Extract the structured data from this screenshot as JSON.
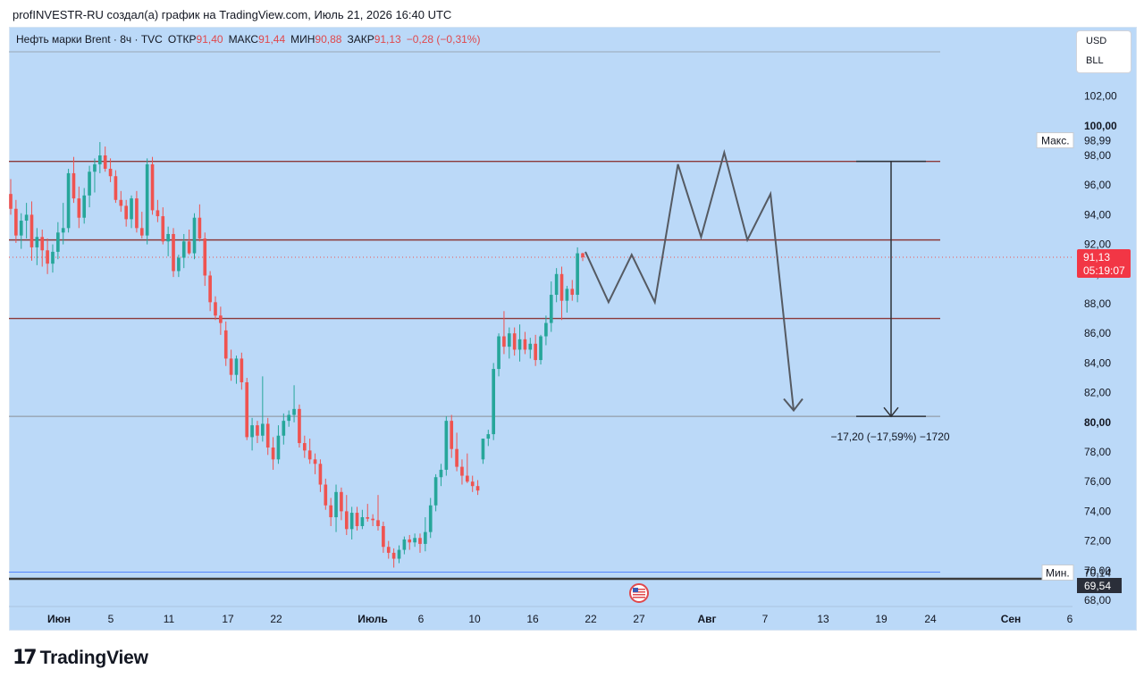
{
  "header": {
    "attribution": "profINVESTR-RU создал(а) график на TradingView.com, Июль 21, 2026 16:40 UTC"
  },
  "legend": {
    "symbol": "Нефть марки Brent · 8ч · TVC",
    "open_label": "ОТКР",
    "open_value": "91,40",
    "high_label": "МАКС",
    "high_value": "91,44",
    "low_label": "МИН",
    "low_value": "90,88",
    "close_label": "ЗАКР",
    "close_value": "91,13",
    "change": "−0,28 (−0,31%)"
  },
  "currency_box": {
    "currency": "USD",
    "unit": "BLL"
  },
  "footer": {
    "brand": "TradingView"
  },
  "colors": {
    "background": "#bbd9f8",
    "up": "#26a69a",
    "down": "#ef5350",
    "level_line": "#8b3a3a",
    "projection": "#555a62"
  },
  "chart_data": {
    "type": "candlestick",
    "ylim": [
      68,
      104
    ],
    "y_ticks": [
      "68,00",
      "70,00",
      "72,00",
      "74,00",
      "76,00",
      "78,00",
      "80,00",
      "82,00",
      "84,00",
      "86,00",
      "88,00",
      "90,00",
      "92,00",
      "94,00",
      "96,00",
      "98,00",
      "100,00",
      "102,00"
    ],
    "x_ticks": [
      "Июн",
      "5",
      "11",
      "17",
      "22",
      "Июль",
      "6",
      "10",
      "16",
      "22",
      "27",
      "Авг",
      "7",
      "13",
      "19",
      "24",
      "Сен",
      "6"
    ],
    "x_ticks_bold": [
      "Июн",
      "Июль",
      "Авг",
      "Сен"
    ],
    "y_ticks_bold": [
      "80,00",
      "100,00"
    ],
    "horizontal_levels": [
      97.6,
      92.3,
      87.0,
      80.4
    ],
    "reference_lines": {
      "max": 98.99,
      "min": 70.14,
      "current": 91.13,
      "lower": 69.54
    },
    "price_labels": {
      "max_label": "Макс.",
      "max_value": "98,99",
      "min_label": "Мин.",
      "min_value": "70,14",
      "current_value": "91,13",
      "countdown": "05:19:07",
      "lower_value": "69,54"
    },
    "measure": {
      "from": 97.6,
      "to": 80.4,
      "label": "−17,20 (−17,59%) −1720"
    },
    "projection_path": [
      91.5,
      88.1,
      91.3,
      88.1,
      97.4,
      92.5,
      98.2,
      92.3,
      95.4,
      80.8
    ],
    "candles": [
      [
        95.4,
        96.4,
        94.0,
        94.4
      ],
      [
        94.4,
        95.0,
        92.1,
        92.6
      ],
      [
        92.6,
        94.1,
        91.7,
        93.6
      ],
      [
        93.6,
        94.8,
        92.4,
        94.0
      ],
      [
        94.0,
        94.9,
        90.9,
        91.8
      ],
      [
        91.8,
        93.1,
        90.6,
        92.5
      ],
      [
        92.5,
        93.0,
        90.5,
        91.6
      ],
      [
        91.6,
        92.4,
        90.0,
        90.7
      ],
      [
        90.7,
        92.0,
        90.1,
        91.5
      ],
      [
        91.5,
        93.5,
        91.0,
        92.8
      ],
      [
        92.8,
        94.8,
        92.0,
        93.1
      ],
      [
        93.1,
        97.1,
        92.8,
        96.8
      ],
      [
        96.8,
        97.9,
        94.8,
        95.1
      ],
      [
        95.1,
        95.9,
        93.1,
        93.8
      ],
      [
        93.8,
        95.8,
        93.4,
        95.3
      ],
      [
        95.3,
        97.3,
        94.5,
        96.9
      ],
      [
        96.9,
        97.8,
        95.5,
        97.4
      ],
      [
        97.4,
        98.9,
        96.8,
        98.0
      ],
      [
        98.0,
        98.6,
        96.9,
        97.1
      ],
      [
        97.1,
        97.8,
        96.2,
        96.6
      ],
      [
        96.6,
        97.0,
        94.8,
        95.0
      ],
      [
        95.0,
        95.6,
        94.2,
        94.6
      ],
      [
        94.6,
        95.0,
        93.2,
        93.7
      ],
      [
        93.7,
        95.3,
        93.1,
        95.1
      ],
      [
        95.1,
        95.6,
        92.8,
        93.1
      ],
      [
        93.1,
        94.2,
        92.4,
        92.6
      ],
      [
        92.6,
        97.8,
        92.0,
        97.4
      ],
      [
        97.4,
        97.9,
        94.0,
        94.3
      ],
      [
        94.3,
        95.0,
        93.5,
        93.9
      ],
      [
        93.9,
        94.5,
        92.0,
        92.2
      ],
      [
        92.2,
        93.2,
        91.2,
        92.7
      ],
      [
        92.7,
        93.1,
        89.8,
        90.2
      ],
      [
        90.2,
        91.3,
        89.8,
        91.1
      ],
      [
        91.1,
        92.7,
        90.4,
        92.2
      ],
      [
        92.2,
        93.0,
        91.3,
        91.4
      ],
      [
        91.4,
        94.1,
        91.0,
        93.8
      ],
      [
        93.8,
        94.7,
        92.2,
        92.4
      ],
      [
        92.4,
        92.8,
        89.2,
        89.9
      ],
      [
        89.9,
        90.2,
        87.5,
        88.1
      ],
      [
        88.1,
        88.5,
        86.9,
        87.2
      ],
      [
        87.2,
        87.8,
        85.9,
        86.7
      ],
      [
        86.2,
        86.8,
        83.8,
        84.3
      ],
      [
        84.3,
        84.9,
        82.8,
        83.2
      ],
      [
        83.2,
        84.5,
        82.6,
        84.3
      ],
      [
        84.3,
        84.7,
        82.2,
        82.7
      ],
      [
        82.7,
        83.0,
        78.8,
        79.0
      ],
      [
        79.0,
        80.3,
        78.1,
        79.8
      ],
      [
        79.8,
        80.1,
        78.6,
        79.1
      ],
      [
        79.1,
        83.1,
        78.7,
        79.9
      ],
      [
        79.9,
        80.3,
        77.8,
        78.3
      ],
      [
        78.3,
        79.0,
        76.8,
        77.5
      ],
      [
        77.5,
        79.8,
        77.2,
        79.1
      ],
      [
        79.1,
        80.6,
        78.5,
        80.1
      ],
      [
        80.1,
        80.8,
        79.7,
        80.5
      ],
      [
        80.5,
        82.5,
        80.0,
        80.9
      ],
      [
        80.9,
        81.2,
        78.3,
        78.6
      ],
      [
        78.6,
        79.1,
        77.6,
        78.1
      ],
      [
        78.1,
        78.9,
        77.2,
        77.5
      ],
      [
        77.5,
        77.9,
        76.5,
        77.2
      ],
      [
        77.2,
        77.5,
        75.3,
        75.8
      ],
      [
        75.8,
        76.2,
        74.1,
        74.4
      ],
      [
        74.4,
        74.9,
        73.0,
        73.6
      ],
      [
        73.6,
        75.8,
        72.6,
        75.3
      ],
      [
        75.3,
        75.6,
        73.4,
        74.0
      ],
      [
        74.0,
        75.1,
        72.4,
        72.8
      ],
      [
        72.8,
        74.3,
        72.1,
        73.9
      ],
      [
        73.9,
        74.3,
        72.7,
        73.0
      ],
      [
        73.0,
        74.1,
        72.8,
        73.6
      ],
      [
        73.6,
        74.5,
        73.3,
        73.5
      ],
      [
        73.5,
        73.8,
        73.0,
        73.4
      ],
      [
        73.4,
        75.1,
        72.7,
        73.0
      ],
      [
        73.0,
        73.3,
        71.2,
        71.6
      ],
      [
        71.6,
        72.0,
        70.8,
        71.2
      ],
      [
        71.2,
        71.5,
        70.2,
        70.8
      ],
      [
        70.8,
        71.7,
        70.5,
        71.4
      ],
      [
        71.4,
        72.3,
        71.1,
        72.1
      ],
      [
        72.1,
        72.4,
        71.4,
        71.9
      ],
      [
        71.9,
        72.5,
        71.6,
        72.2
      ],
      [
        72.2,
        72.5,
        71.2,
        71.8
      ],
      [
        71.8,
        73.6,
        71.3,
        72.6
      ],
      [
        72.6,
        74.9,
        72.2,
        74.4
      ],
      [
        74.4,
        76.5,
        74.0,
        76.3
      ],
      [
        76.3,
        77.2,
        75.7,
        76.8
      ],
      [
        76.8,
        80.4,
        76.4,
        80.1
      ],
      [
        80.1,
        80.5,
        77.6,
        78.2
      ],
      [
        78.2,
        79.3,
        76.7,
        77.0
      ],
      [
        77.0,
        77.5,
        75.8,
        76.4
      ],
      [
        76.4,
        77.9,
        75.9,
        76.0
      ],
      [
        76.0,
        76.4,
        75.3,
        75.7
      ],
      [
        75.7,
        76.1,
        75.1,
        75.4
      ],
      [
        77.5,
        78.6,
        77.2,
        78.9
      ],
      [
        78.9,
        79.5,
        78.4,
        79.2
      ],
      [
        79.2,
        84.0,
        78.8,
        83.6
      ],
      [
        83.6,
        86.0,
        83.1,
        85.8
      ],
      [
        85.8,
        87.5,
        84.6,
        85.1
      ],
      [
        85.1,
        86.4,
        84.3,
        86.0
      ],
      [
        86.0,
        86.4,
        84.5,
        84.9
      ],
      [
        84.9,
        86.6,
        84.1,
        85.6
      ],
      [
        85.6,
        86.1,
        84.6,
        84.9
      ],
      [
        84.9,
        85.7,
        84.3,
        85.3
      ],
      [
        85.3,
        85.9,
        83.8,
        84.2
      ],
      [
        84.2,
        85.9,
        83.9,
        85.8
      ],
      [
        85.8,
        87.2,
        85.2,
        86.7
      ],
      [
        86.7,
        89.5,
        86.1,
        88.6
      ],
      [
        88.6,
        90.4,
        88.1,
        90.0
      ],
      [
        90.0,
        90.5,
        86.9,
        88.2
      ],
      [
        88.2,
        89.2,
        87.4,
        89.0
      ],
      [
        89.0,
        89.6,
        88.2,
        88.6
      ],
      [
        88.6,
        91.8,
        88.1,
        91.4
      ],
      [
        91.4,
        91.44,
        90.88,
        91.13
      ]
    ]
  }
}
